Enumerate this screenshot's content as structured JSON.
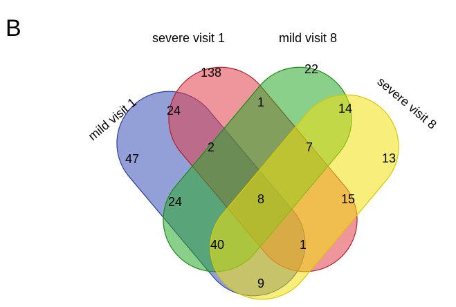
{
  "panel_label": "B",
  "sets": [
    {
      "name": "mild visit 1",
      "fill": "#3a52b8",
      "stroke": "#2a3f9a"
    },
    {
      "name": "severe visit 1",
      "fill": "#e0404a",
      "stroke": "#b02030"
    },
    {
      "name": "mild visit 8",
      "fill": "#2aa82a",
      "stroke": "#1a8a1a"
    },
    {
      "name": "severe visit 8",
      "fill": "#f0e010",
      "stroke": "#d8c800"
    }
  ],
  "regions": [
    {
      "sets": [
        "severe visit 1"
      ],
      "value": "138"
    },
    {
      "sets": [
        "mild visit 8"
      ],
      "value": "22"
    },
    {
      "sets": [
        "mild visit 1"
      ],
      "value": "47"
    },
    {
      "sets": [
        "severe visit 8"
      ],
      "value": "13"
    },
    {
      "sets": [
        "mild visit 1",
        "severe visit 1"
      ],
      "value": "24"
    },
    {
      "sets": [
        "severe visit 1",
        "mild visit 8"
      ],
      "value": "1"
    },
    {
      "sets": [
        "mild visit 8",
        "severe visit 8"
      ],
      "value": "14"
    },
    {
      "sets": [
        "mild visit 1",
        "severe visit 1",
        "mild visit 8"
      ],
      "value": "2"
    },
    {
      "sets": [
        "severe visit 1",
        "mild visit 8",
        "severe visit 8"
      ],
      "value": "7"
    },
    {
      "sets": [
        "mild visit 1",
        "mild visit 8"
      ],
      "value": "24"
    },
    {
      "sets": [
        "severe visit 1",
        "severe visit 8"
      ],
      "value": "15"
    },
    {
      "sets": [
        "mild visit 1",
        "severe visit 1",
        "mild visit 8",
        "severe visit 8"
      ],
      "value": "8"
    },
    {
      "sets": [
        "mild visit 1",
        "mild visit 8",
        "severe visit 8"
      ],
      "value": "40"
    },
    {
      "sets": [
        "mild visit 1",
        "severe visit 1",
        "severe visit 8"
      ],
      "value": "1"
    },
    {
      "sets": [
        "mild visit 1",
        "severe visit 8"
      ],
      "value": "9"
    }
  ]
}
